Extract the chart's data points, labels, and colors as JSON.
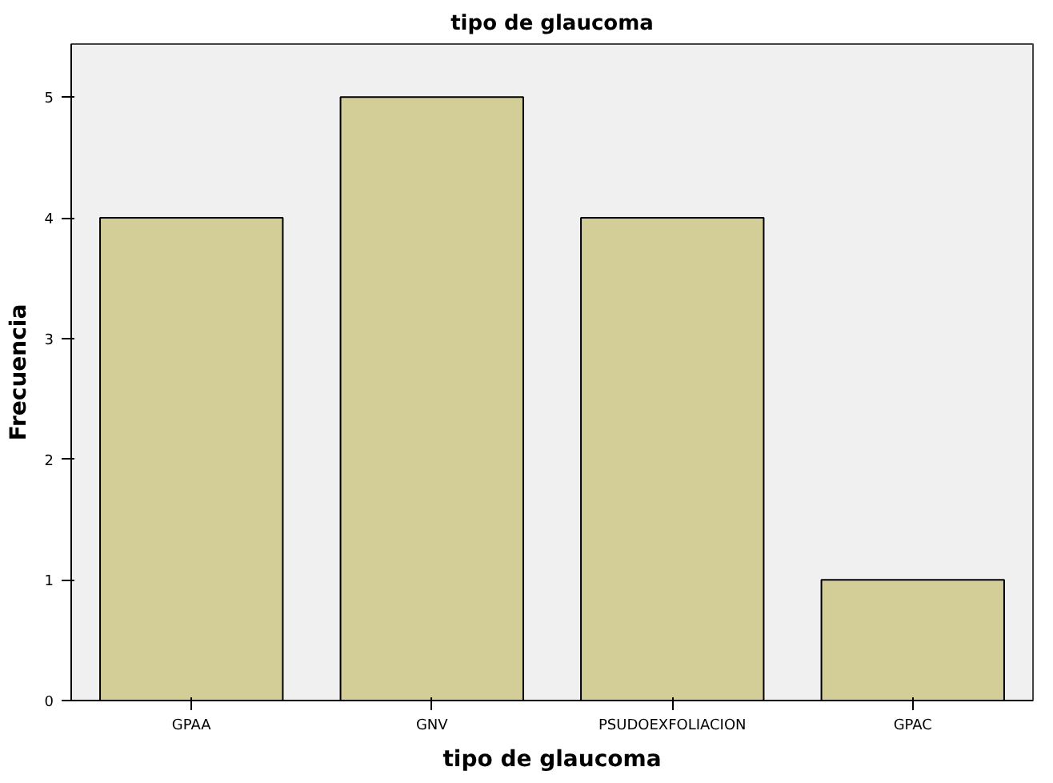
{
  "chart_data": {
    "type": "bar",
    "title": "tipo de glaucoma",
    "xlabel": "tipo de glaucoma",
    "ylabel": "Frecuencia",
    "categories": [
      "GPAA",
      "GNV",
      "PSUDOEXFOLIACION",
      "GPAC"
    ],
    "values": [
      4,
      5,
      4,
      1
    ],
    "color": "#d3ce98",
    "ylim": [
      0,
      5.44
    ],
    "yticks": [
      0,
      1,
      2,
      3,
      4,
      5
    ],
    "grid": false
  }
}
